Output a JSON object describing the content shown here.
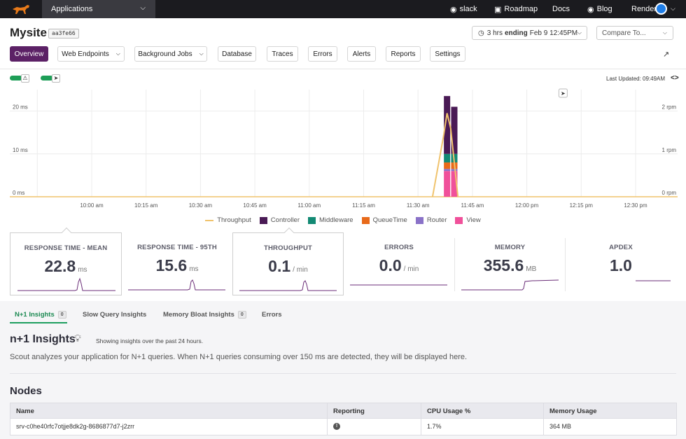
{
  "topbar": {
    "app_select_label": "Applications",
    "nav": [
      {
        "label": "slack",
        "icon": "slack-icon"
      },
      {
        "label": "Roadmap",
        "icon": "roadmap-icon"
      },
      {
        "label": "Docs",
        "icon": ""
      },
      {
        "label": "Blog",
        "icon": "blog-icon"
      },
      {
        "label": "Render",
        "icon": "render-avatar"
      }
    ]
  },
  "header": {
    "title": "Mysite",
    "hash": "aa3fe66",
    "time_prefix": "3 hrs",
    "time_bold": "ending",
    "time_suffix": "Feb 9 12:45PM",
    "compare_placeholder": "Compare To..."
  },
  "tabs": [
    {
      "label": "Overview",
      "active": true
    },
    {
      "label": "Web Endpoints",
      "dropdown": true
    },
    {
      "label": "Background Jobs",
      "dropdown": true
    },
    {
      "label": "Database"
    },
    {
      "label": "Traces"
    },
    {
      "label": "Errors"
    },
    {
      "label": "Alerts"
    },
    {
      "label": "Reports"
    },
    {
      "label": "Settings"
    }
  ],
  "chart_controls": {
    "last_updated": "Last Updated: 09:49AM"
  },
  "chart_data": {
    "type": "bar",
    "x_ticks": [
      "10:00 am",
      "10:15 am",
      "10:30 am",
      "10:45 am",
      "11:00 am",
      "11:15 am",
      "11:30 am",
      "11:45 am",
      "12:00 pm",
      "12:15 pm",
      "12:30 pm"
    ],
    "y_left_ticks": [
      "20 ms",
      "10 ms",
      "0 ms"
    ],
    "y_right_ticks": [
      "2 rpm",
      "1 rpm",
      "0 rpm"
    ],
    "ylim": [
      0,
      25
    ],
    "ylim_right": [
      0,
      2.5
    ],
    "stack_order": [
      "View",
      "Router",
      "QueueTime",
      "Middleware",
      "Controller"
    ],
    "series": [
      {
        "name": "Throughput",
        "color": "#f0c36d",
        "line": true
      },
      {
        "name": "Controller",
        "color": "#4a1a55"
      },
      {
        "name": "Middleware",
        "color": "#138a74"
      },
      {
        "name": "QueueTime",
        "color": "#e86a1a"
      },
      {
        "name": "Router",
        "color": "#8a72c8"
      },
      {
        "name": "View",
        "color": "#f0509a"
      }
    ],
    "bars": [
      {
        "time": "11:38 am",
        "View": 6,
        "Router": 0.5,
        "QueueTime": 1.5,
        "Middleware": 2,
        "Controller": 13.5
      },
      {
        "time": "11:40 am",
        "View": 6,
        "Router": 0.5,
        "QueueTime": 1.5,
        "Middleware": 2,
        "Controller": 11
      }
    ],
    "throughput": [
      {
        "time": "11:34 am",
        "rpm": 0
      },
      {
        "time": "11:37 am",
        "rpm": 1.4
      },
      {
        "time": "11:38 am",
        "rpm": 1.95
      },
      {
        "time": "11:39 am",
        "rpm": 1.6
      },
      {
        "time": "11:41 am",
        "rpm": 0
      }
    ],
    "deploy_marker_time": "12:10 pm"
  },
  "metrics": [
    {
      "title": "RESPONSE TIME - MEAN",
      "value": "22.8",
      "unit": "ms",
      "spark": "spike"
    },
    {
      "title": "RESPONSE TIME - 95TH",
      "value": "15.6",
      "unit": "ms",
      "spark": "spike"
    },
    {
      "title": "THROUGHPUT",
      "value": "0.1",
      "unit": "/ min",
      "spark": "spike"
    },
    {
      "title": "ERRORS",
      "value": "0.0",
      "unit": "/ min",
      "spark": "flat"
    },
    {
      "title": "MEMORY",
      "value": "355.6",
      "unit": "MB",
      "spark": "step"
    },
    {
      "title": "APDEX",
      "value": "1.0",
      "unit": "",
      "spark": "flat"
    }
  ],
  "insight_tabs": [
    {
      "label": "N+1 Insights",
      "badge": "0",
      "active": true
    },
    {
      "label": "Slow Query Insights"
    },
    {
      "label": "Memory Bloat Insights",
      "badge": "0"
    },
    {
      "label": "Errors"
    }
  ],
  "insights": {
    "title": "n+1 Insights",
    "subtitle": "Showing insights over the past 24 hours.",
    "description": "Scout analyzes your application for N+1 queries. When N+1 queries consuming over 150 ms are detected, they will be displayed here."
  },
  "nodes": {
    "title": "Nodes",
    "columns": [
      "Name",
      "Reporting",
      "CPU Usage %",
      "Memory Usage"
    ],
    "rows": [
      {
        "name": "srv-c0he40rfc7otjje8dk2g-8686877d7-j2zrr",
        "reporting": "!",
        "cpu": "1.7%",
        "memory": "364 MB"
      }
    ]
  }
}
